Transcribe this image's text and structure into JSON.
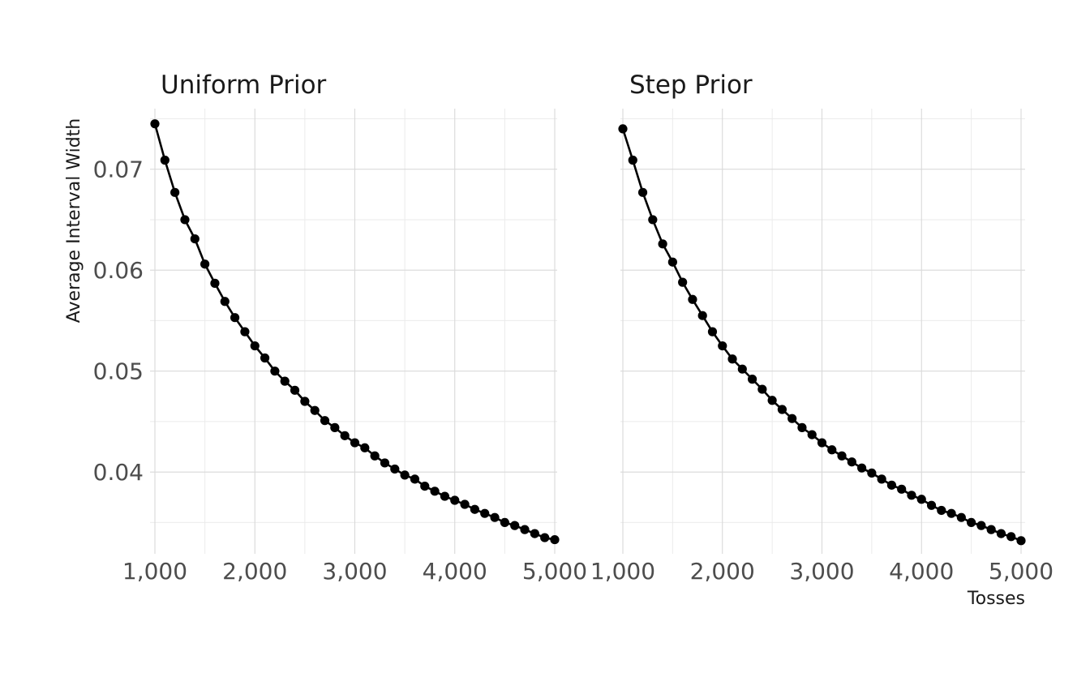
{
  "chart_data": {
    "type": "line",
    "facets": [
      {
        "title": "Uniform Prior",
        "x": [
          1000,
          1100,
          1200,
          1300,
          1400,
          1500,
          1600,
          1700,
          1800,
          1900,
          2000,
          2100,
          2200,
          2300,
          2400,
          2500,
          2600,
          2700,
          2800,
          2900,
          3000,
          3100,
          3200,
          3300,
          3400,
          3500,
          3600,
          3700,
          3800,
          3900,
          4000,
          4100,
          4200,
          4300,
          4400,
          4500,
          4600,
          4700,
          4800,
          4900,
          5000
        ],
        "y": [
          0.0745,
          0.0709,
          0.0677,
          0.065,
          0.0631,
          0.0606,
          0.0587,
          0.0569,
          0.0553,
          0.0539,
          0.0525,
          0.0513,
          0.05,
          0.049,
          0.0481,
          0.047,
          0.0461,
          0.0451,
          0.0444,
          0.0436,
          0.0429,
          0.0424,
          0.0416,
          0.0409,
          0.0403,
          0.0397,
          0.0393,
          0.0386,
          0.0381,
          0.0376,
          0.0372,
          0.0368,
          0.0363,
          0.0359,
          0.0355,
          0.035,
          0.0347,
          0.0343,
          0.0339,
          0.0335,
          0.0333
        ]
      },
      {
        "title": "Step Prior",
        "x": [
          1000,
          1100,
          1200,
          1300,
          1400,
          1500,
          1600,
          1700,
          1800,
          1900,
          2000,
          2100,
          2200,
          2300,
          2400,
          2500,
          2600,
          2700,
          2800,
          2900,
          3000,
          3100,
          3200,
          3300,
          3400,
          3500,
          3600,
          3700,
          3800,
          3900,
          4000,
          4100,
          4200,
          4300,
          4400,
          4500,
          4600,
          4700,
          4800,
          4900,
          5000
        ],
        "y": [
          0.074,
          0.0709,
          0.0677,
          0.065,
          0.0626,
          0.0608,
          0.0588,
          0.0571,
          0.0555,
          0.0539,
          0.0525,
          0.0512,
          0.0502,
          0.0492,
          0.0482,
          0.0471,
          0.0462,
          0.0453,
          0.0444,
          0.0437,
          0.0429,
          0.0422,
          0.0416,
          0.041,
          0.0404,
          0.0399,
          0.0393,
          0.0387,
          0.0383,
          0.0377,
          0.0373,
          0.0367,
          0.0362,
          0.0359,
          0.0355,
          0.035,
          0.0347,
          0.0343,
          0.0339,
          0.0336,
          0.0332
        ]
      }
    ],
    "xlabel": "Tosses",
    "ylabel": "Average Interval Width",
    "x_ticks": [
      1000,
      2000,
      3000,
      4000,
      5000
    ],
    "x_tick_labels": [
      "1,000",
      "2,000",
      "3,000",
      "4,000",
      "5,000"
    ],
    "y_ticks": [
      0.04,
      0.05,
      0.06,
      0.07
    ],
    "y_tick_labels": [
      "0.04",
      "0.05",
      "0.06",
      "0.07"
    ],
    "xlim": [
      1000,
      5000
    ],
    "ylim": [
      0.0319,
      0.076
    ],
    "grid": true,
    "line_color": "#000000",
    "grid_color": "#d9d9d9"
  }
}
